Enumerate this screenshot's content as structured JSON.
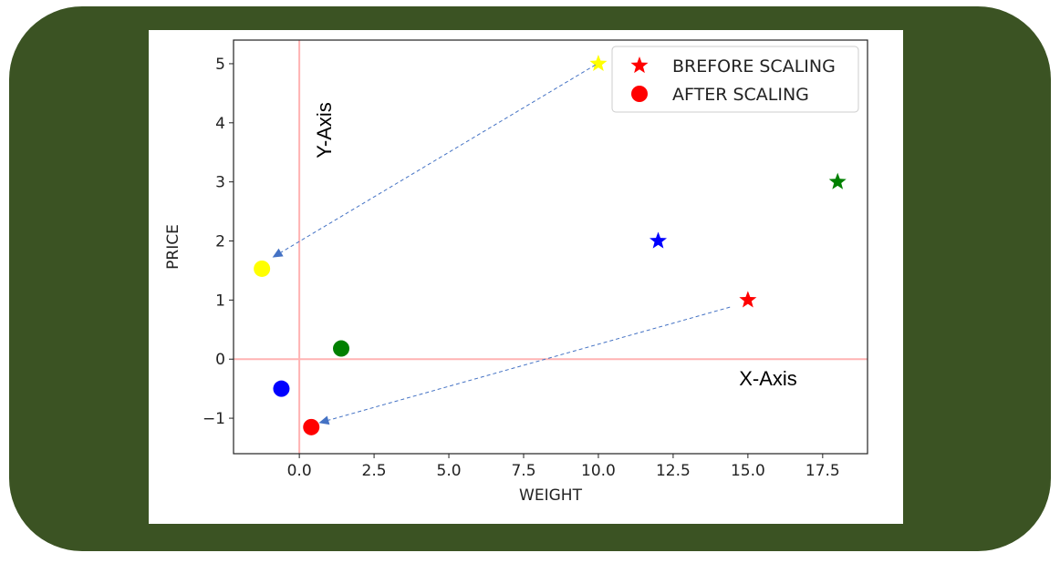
{
  "chart_data": {
    "type": "scatter",
    "xlabel": "WEIGHT",
    "ylabel": "PRICE",
    "xlim": [
      -2.2,
      19
    ],
    "ylim": [
      -1.6,
      5.4
    ],
    "xticks": [
      0.0,
      2.5,
      5.0,
      7.5,
      10.0,
      12.5,
      15.0,
      17.5
    ],
    "xtick_labels": [
      "0.0",
      "2.5",
      "5.0",
      "7.5",
      "10.0",
      "12.5",
      "15.0",
      "17.5"
    ],
    "yticks": [
      -1,
      0,
      1,
      2,
      3,
      4,
      5
    ],
    "ytick_labels": [
      "−1",
      "0",
      "1",
      "2",
      "3",
      "4",
      "5"
    ],
    "grid": false,
    "legend_position": "top-right",
    "series": [
      {
        "name": "BREFORE SCALING",
        "marker": "star",
        "legend_color": "#ff0000",
        "points": [
          {
            "x": 10.0,
            "y": 5.0,
            "color": "#ffff00"
          },
          {
            "x": 12.0,
            "y": 2.0,
            "color": "#0000ff"
          },
          {
            "x": 15.0,
            "y": 1.0,
            "color": "#ff0000"
          },
          {
            "x": 18.0,
            "y": 3.0,
            "color": "#008000"
          }
        ]
      },
      {
        "name": "AFTER SCALING",
        "marker": "circle",
        "legend_color": "#ff0000",
        "points": [
          {
            "x": -1.25,
            "y": 1.53,
            "color": "#ffff00"
          },
          {
            "x": -0.6,
            "y": -0.5,
            "color": "#0000ff"
          },
          {
            "x": 0.4,
            "y": -1.15,
            "color": "#ff0000"
          },
          {
            "x": 1.4,
            "y": 0.18,
            "color": "#008000"
          }
        ]
      }
    ],
    "reference_lines": {
      "vertical_x": 0,
      "horizontal_y": 0,
      "color": "#ffb3b3"
    },
    "annotations": [
      {
        "text": "Y-Axis"
      },
      {
        "text": "X-Axis"
      }
    ],
    "arrows": [
      {
        "from": {
          "x": 9.9,
          "y": 4.98
        },
        "to": {
          "x": -0.9,
          "y": 1.72
        },
        "color": "#4472c4"
      },
      {
        "from": {
          "x": 14.4,
          "y": 0.88
        },
        "to": {
          "x": 0.65,
          "y": -1.08
        },
        "color": "#4472c4"
      }
    ]
  }
}
